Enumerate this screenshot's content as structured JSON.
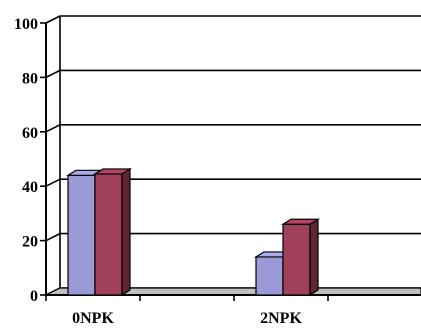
{
  "chart_data": {
    "type": "bar",
    "style": "3d-clustered",
    "categories": [
      "0NPK",
      "",
      "2NPK",
      ""
    ],
    "series": [
      {
        "values": [
          44,
          null,
          14,
          null
        ],
        "color": "#9a9ad6"
      },
      {
        "values": [
          44.5,
          null,
          26,
          null
        ],
        "color": "#a0405a"
      }
    ],
    "ylim": [
      0,
      100
    ],
    "yticks": [
      0,
      20,
      40,
      60,
      80,
      100
    ],
    "ytick_labels": [
      "0",
      "20",
      "40",
      "60",
      "80",
      "100"
    ],
    "grid": true,
    "legend": "none",
    "title": "",
    "xlabel": "",
    "ylabel": ""
  }
}
